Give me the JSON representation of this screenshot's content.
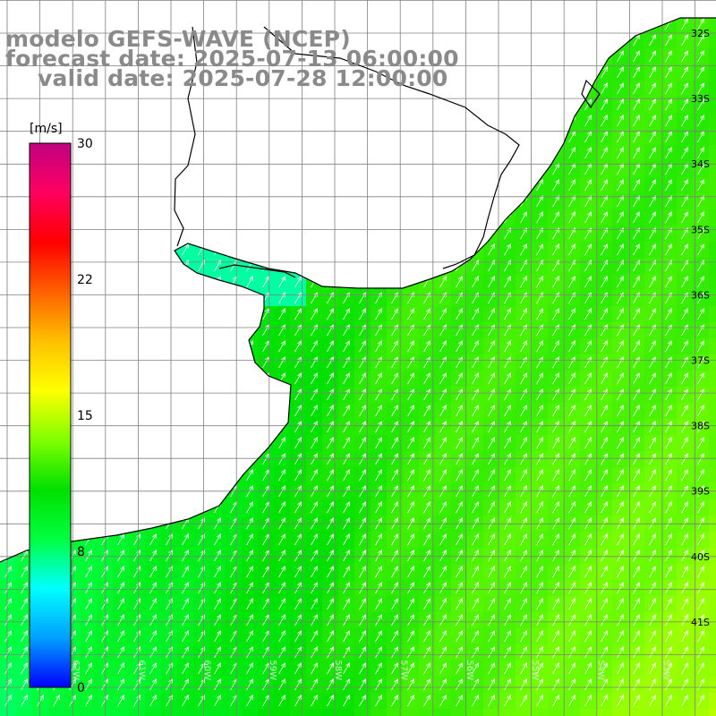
{
  "header": {
    "line1": "modelo GEFS-WAVE (NCEP)",
    "line2": "forecast date: 2025-07-13 06:00:00",
    "line3": "valid date: 2025-07-28 12:00:00"
  },
  "colorbar": {
    "unit": "[m/s]",
    "ticks": [
      {
        "value": 30,
        "label": "30"
      },
      {
        "value": 22.5,
        "label": "22"
      },
      {
        "value": 15,
        "label": "15"
      },
      {
        "value": 7.5,
        "label": "8"
      },
      {
        "value": 0,
        "label": "0"
      }
    ],
    "min": 0,
    "max": 30,
    "stops": [
      "#0000ff",
      "#00a0ff",
      "#00ffff",
      "#00ff40",
      "#00e000",
      "#80ff00",
      "#ffff00",
      "#ffc000",
      "#ff6000",
      "#ff0000",
      "#ff0060",
      "#c00080"
    ]
  },
  "map": {
    "lat_labels": [
      {
        "lat": -32,
        "label": "32S"
      },
      {
        "lat": -33,
        "label": "33S"
      },
      {
        "lat": -34,
        "label": "34S"
      },
      {
        "lat": -35,
        "label": "35S"
      },
      {
        "lat": -36,
        "label": "36S"
      },
      {
        "lat": -37,
        "label": "37S"
      },
      {
        "lat": -38,
        "label": "38S"
      },
      {
        "lat": -39,
        "label": "39S"
      },
      {
        "lat": -40,
        "label": "40S"
      },
      {
        "lat": -41,
        "label": "41S"
      }
    ],
    "lon_labels": [
      {
        "lon": -62,
        "label": "62W"
      },
      {
        "lon": -61,
        "label": "61W"
      },
      {
        "lon": -60,
        "label": "60W"
      },
      {
        "lon": -59,
        "label": "59W"
      },
      {
        "lon": -58,
        "label": "58W"
      },
      {
        "lon": -57,
        "label": "57W"
      },
      {
        "lon": -56,
        "label": "56W"
      },
      {
        "lon": -55,
        "label": "55W"
      },
      {
        "lon": -54,
        "label": "54W"
      },
      {
        "lon": -53,
        "label": "53W"
      },
      {
        "lon": -52,
        "label": "52W"
      }
    ],
    "wind_direction_deg": 30,
    "speed_field_note_ms": {
      "southwest_coast": 8,
      "offshore_centre": 12,
      "southeast_corner": 16
    }
  },
  "colors": {
    "land": "#ffffff",
    "coast": "#000000",
    "grid": "#808080",
    "arrow": "#ffffff",
    "title": "#8a8a8a"
  }
}
